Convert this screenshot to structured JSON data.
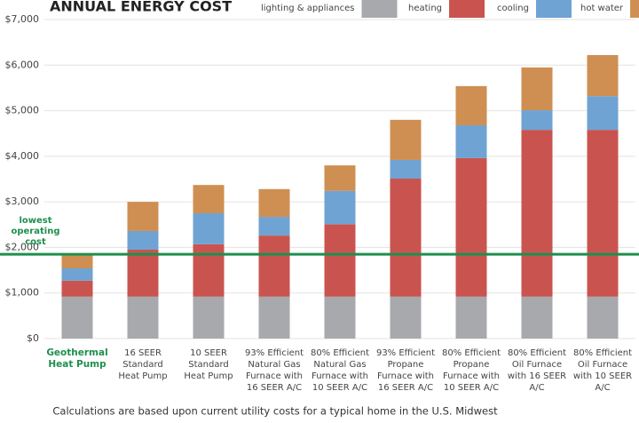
{
  "chart_data": {
    "type": "stacked_bar",
    "title": "ANNUAL ENERGY COST",
    "footnote": "Calculations are based upon current utility costs for a typical home in the U.S. Midwest",
    "categories": [
      [
        "Geothermal",
        "Heat Pump"
      ],
      [
        "16 SEER",
        "Standard",
        "Heat Pump"
      ],
      [
        "10 SEER",
        "Standard",
        "Heat Pump"
      ],
      [
        "93% Efficient",
        "Natural Gas",
        "Furnace with",
        "16 SEER A/C"
      ],
      [
        "80% Efficient",
        "Natural Gas",
        "Furnace with",
        "10 SEER A/C"
      ],
      [
        "93% Efficient",
        "Propane",
        "Furnace with",
        "16 SEER A/C"
      ],
      [
        "80% Efficient",
        "Propane",
        "Furnace with",
        "10 SEER A/C"
      ],
      [
        "80% Efficient",
        "Oil Furnace",
        "with 16 SEER",
        "A/C"
      ],
      [
        "80% Efficient",
        "Oil Furnace",
        "with 10 SEER",
        "A/C"
      ]
    ],
    "series": [
      {
        "name": "lighting & appliances",
        "color": "#a7a9ac",
        "values": [
          920,
          920,
          920,
          920,
          920,
          920,
          920,
          920,
          920
        ]
      },
      {
        "name": "heating",
        "color": "#c9544f",
        "values": [
          350,
          1030,
          1150,
          1340,
          1590,
          2590,
          3040,
          3660,
          3660
        ]
      },
      {
        "name": "cooling",
        "color": "#6fa3d3",
        "values": [
          270,
          410,
          680,
          410,
          730,
          410,
          720,
          430,
          740
        ]
      },
      {
        "name": "hot water",
        "color": "#cf8f52",
        "values": [
          330,
          640,
          620,
          610,
          560,
          880,
          860,
          940,
          900
        ]
      }
    ],
    "ylim": [
      0,
      7000
    ],
    "yticks": [
      {
        "value": 0,
        "label": "$0"
      },
      {
        "value": 1000,
        "label": "$1,000"
      },
      {
        "value": 2000,
        "label": "$2,000"
      },
      {
        "value": 3000,
        "label": "$3,000"
      },
      {
        "value": 4000,
        "label": "$4,000"
      },
      {
        "value": 5000,
        "label": "$5,000"
      },
      {
        "value": 6000,
        "label": "$6,000"
      },
      {
        "value": 7000,
        "label": "$7,000"
      }
    ],
    "grid": true,
    "reference_line": {
      "value": 1850,
      "label": [
        "lowest",
        "operating",
        "cost"
      ],
      "color": "#1e8f4e"
    }
  }
}
